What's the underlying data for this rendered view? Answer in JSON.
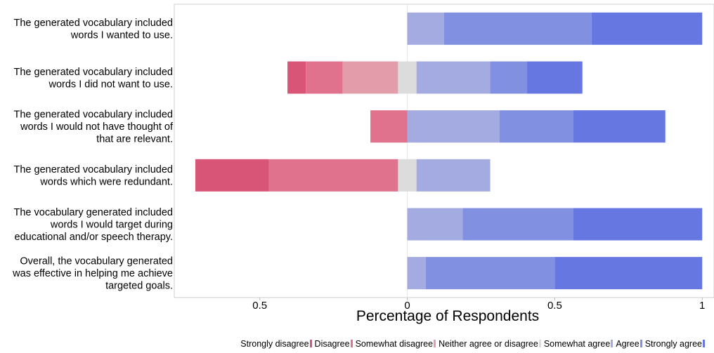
{
  "chart_data": {
    "type": "bar",
    "orientation": "horizontal",
    "stacked": "diverging",
    "xlabel": "Percentage of Respondents",
    "xlim": [
      -0.79,
      1.04
    ],
    "x_ticks": [
      {
        "value": -0.5,
        "label": "0.5"
      },
      {
        "value": 0,
        "label": "0"
      },
      {
        "value": 0.5,
        "label": "0.5"
      },
      {
        "value": 1,
        "label": "1"
      }
    ],
    "categories": [
      [
        "The generated vocabulary included",
        "words I wanted to use."
      ],
      [
        "The generated vocabulary included",
        "words I did not want to use."
      ],
      [
        "The generated vocabulary included",
        "words I would not have thought of",
        "that are relevant."
      ],
      [
        "The generated vocabulary included",
        "words which were redundant."
      ],
      [
        "The vocabulary generated included",
        "words I would target during",
        "educational and/or speech therapy."
      ],
      [
        "Overall, the vocabulary generated",
        "was effective in helping me achieve",
        "targeted goals."
      ]
    ],
    "series": [
      {
        "name": "Strongly disagree",
        "color": "#d85577",
        "values": [
          0,
          0.0625,
          0,
          0.25,
          0,
          0
        ]
      },
      {
        "name": "Disagree",
        "color": "#e0728d",
        "values": [
          0,
          0.125,
          0.125,
          0.4375,
          0,
          0
        ]
      },
      {
        "name": "Somewhat disagree",
        "color": "#e39ca9",
        "values": [
          0,
          0.1875,
          0,
          0,
          0,
          0
        ]
      },
      {
        "name": "Neither agree or disagree",
        "color": "#dcdcdc",
        "values": [
          0,
          0.0625,
          0,
          0.0625,
          0,
          0
        ]
      },
      {
        "name": "Somewhat agree",
        "color": "#a3abe1",
        "values": [
          0.125,
          0.25,
          0.3125,
          0.25,
          0.1875,
          0.0625
        ]
      },
      {
        "name": "Agree",
        "color": "#8190e1",
        "values": [
          0.5,
          0.125,
          0.25,
          0,
          0.375,
          0.4375
        ]
      },
      {
        "name": "Strongly agree",
        "color": "#6677e1",
        "values": [
          0.375,
          0.1875,
          0.3125,
          0,
          0.4375,
          0.5
        ]
      }
    ],
    "legend_position": "bottom-right",
    "grid": false
  }
}
